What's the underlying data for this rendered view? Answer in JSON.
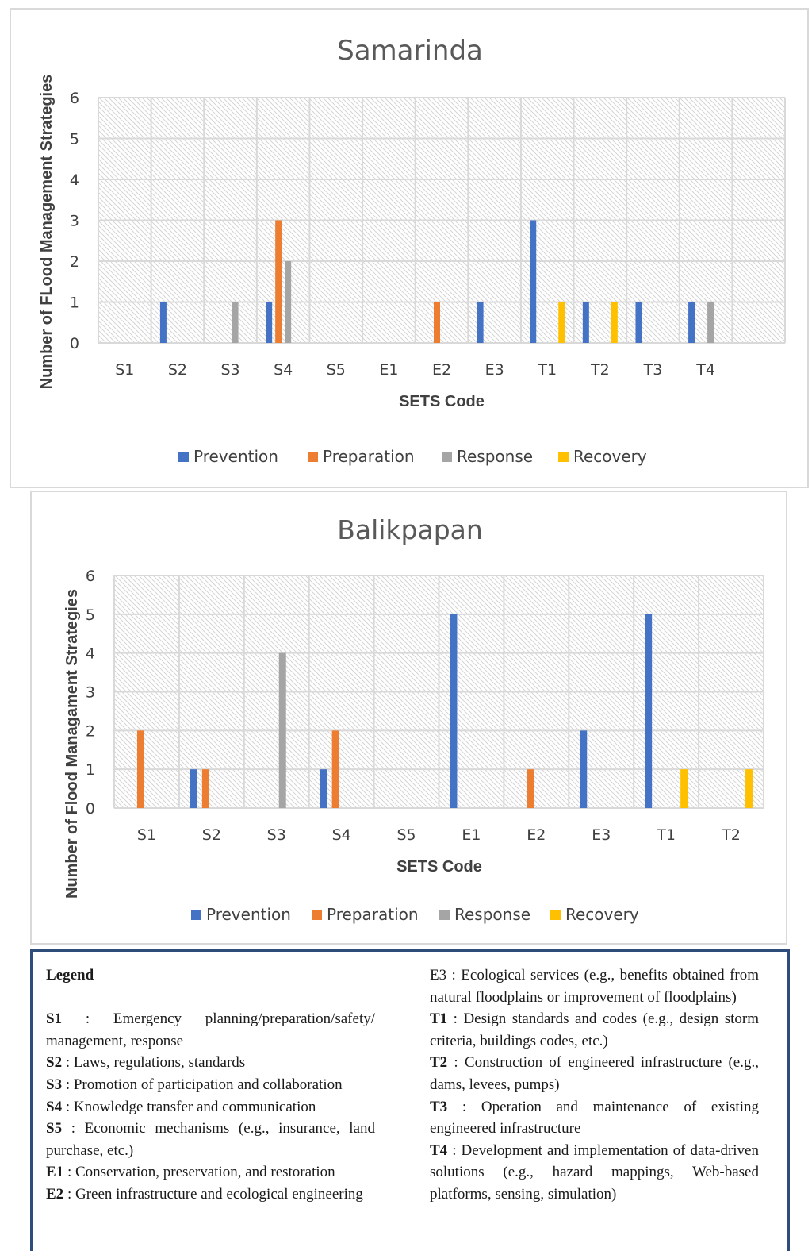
{
  "series_colors": {
    "Prevention": "#4472c4",
    "Preparation": "#ed7d31",
    "Response": "#a5a5a5",
    "Recovery": "#ffc000"
  },
  "chart_data": [
    {
      "type": "bar",
      "title": "Samarinda",
      "xlabel": "SETS Code",
      "ylabel": "Number of FLood Management Strategies",
      "ylim": [
        0,
        6
      ],
      "yticks": [
        0,
        1,
        2,
        3,
        4,
        5,
        6
      ],
      "grid": true,
      "legend_position": "bottom",
      "categories": [
        "S1",
        "S2",
        "S3",
        "S4",
        "S5",
        "E1",
        "E2",
        "E3",
        "T1",
        "T2",
        "T3",
        "T4"
      ],
      "series": [
        {
          "name": "Prevention",
          "values": [
            0,
            1,
            0,
            1,
            0,
            0,
            0,
            1,
            3,
            1,
            1,
            1
          ]
        },
        {
          "name": "Preparation",
          "values": [
            0,
            0,
            0,
            3,
            0,
            0,
            1,
            0,
            0,
            0,
            0,
            0
          ]
        },
        {
          "name": "Response",
          "values": [
            0,
            0,
            1,
            2,
            0,
            0,
            0,
            0,
            0,
            0,
            0,
            1
          ]
        },
        {
          "name": "Recovery",
          "values": [
            0,
            0,
            0,
            0,
            0,
            0,
            0,
            0,
            1,
            1,
            0,
            0
          ]
        }
      ]
    },
    {
      "type": "bar",
      "title": "Balikpapan",
      "xlabel": "SETS Code",
      "ylabel": "Number of Flood Managament Strategies",
      "ylim": [
        0,
        6
      ],
      "yticks": [
        0,
        1,
        2,
        3,
        4,
        5,
        6
      ],
      "grid": true,
      "legend_position": "bottom",
      "categories": [
        "S1",
        "S2",
        "S3",
        "S4",
        "S5",
        "E1",
        "E2",
        "E3",
        "T1",
        "T2"
      ],
      "series": [
        {
          "name": "Prevention",
          "values": [
            0,
            1,
            0,
            1,
            0,
            5,
            0,
            2,
            5,
            0
          ]
        },
        {
          "name": "Preparation",
          "values": [
            2,
            1,
            0,
            2,
            0,
            0,
            1,
            0,
            0,
            0
          ]
        },
        {
          "name": "Response",
          "values": [
            0,
            0,
            4,
            0,
            0,
            0,
            0,
            0,
            0,
            0
          ]
        },
        {
          "name": "Recovery",
          "values": [
            0,
            0,
            0,
            0,
            0,
            0,
            0,
            0,
            1,
            1
          ]
        }
      ]
    }
  ],
  "legend": {
    "title": "Legend",
    "left": [
      {
        "code": "S1",
        "sep": " : ",
        "text": "Emergency planning/preparation/safety/ management, response"
      },
      {
        "code": "S2",
        "sep": " : ",
        "text": "Laws, regulations, standards"
      },
      {
        "code": "S3",
        "sep": " : ",
        "text": "Promotion of participation and collaboration"
      },
      {
        "code": "S4",
        "sep": " : ",
        "text": "Knowledge transfer and communication"
      },
      {
        "code": "S5",
        "sep": " : ",
        "text": "Economic mechanisms (e.g., insurance, land purchase, etc.)"
      },
      {
        "code": "E1",
        "sep": " : ",
        "text": "Conservation, preservation, and restoration"
      },
      {
        "code": "E2",
        "sep": " : ",
        "text": "Green infrastructure and ecological engineering"
      }
    ],
    "right": [
      {
        "code": "E3",
        "sep": " : ",
        "text": "Ecological services (e.g., benefits obtained from natural floodplains or improvement of floodplains)",
        "plain_code": true
      },
      {
        "code": "T1",
        "sep": " : ",
        "text": "Design standards and codes (e.g., design storm criteria, buildings codes, etc.)"
      },
      {
        "code": "T2",
        "sep": " : ",
        "text": "Construction of engineered infrastructure (e.g., dams, levees, pumps)"
      },
      {
        "code": "T3",
        "sep": " : ",
        "text": "Operation and maintenance of existing engineered infrastructure"
      },
      {
        "code": "T4",
        "sep": " : ",
        "text": "Development and implementation of data-driven solutions (e.g., hazard mappings, Web-based platforms, sensing, simulation)"
      }
    ]
  }
}
